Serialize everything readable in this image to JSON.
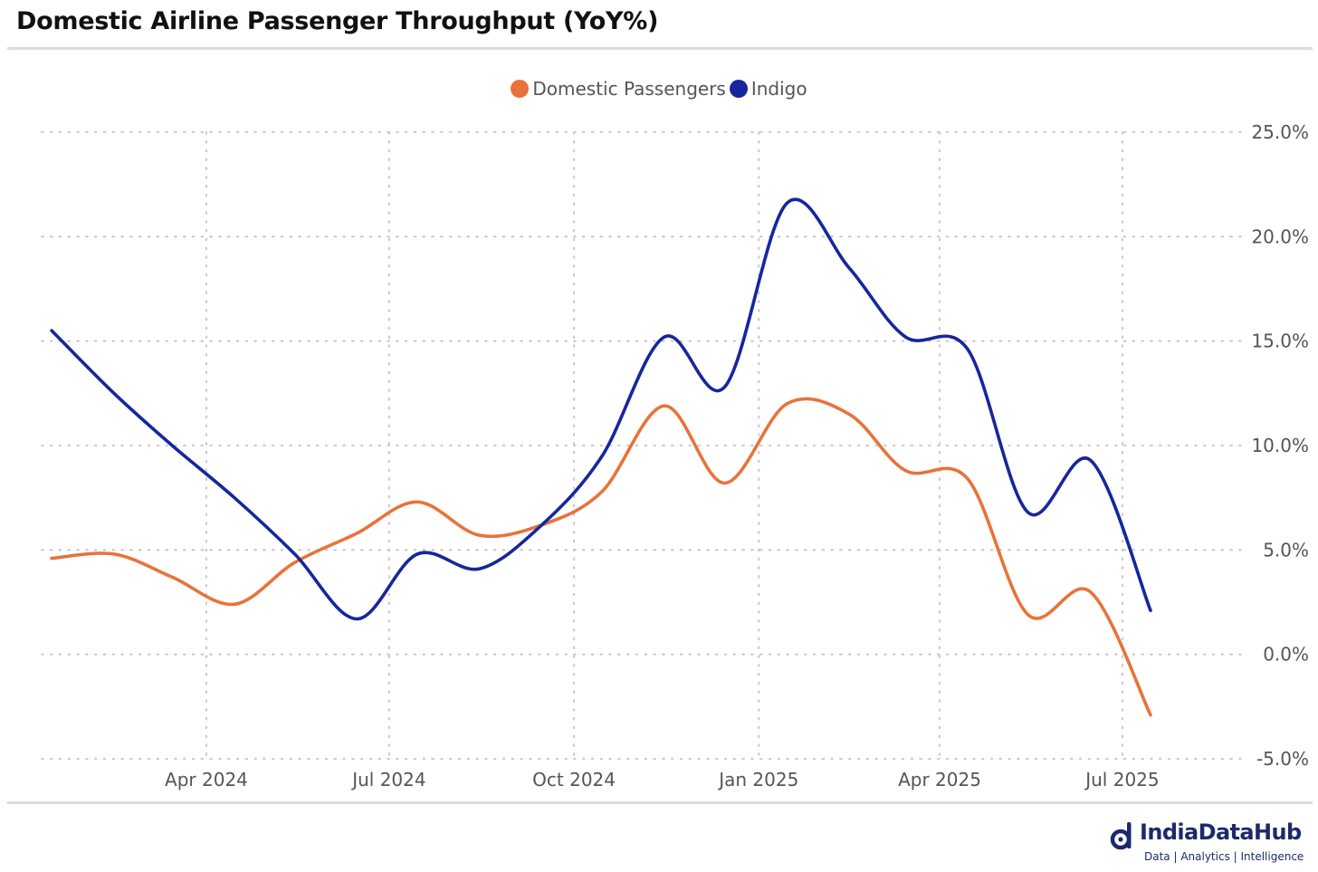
{
  "title": "Domestic Airline Passenger Throughput (YoY%)",
  "brand": {
    "name": "IndiaDataHub",
    "tagline": "Data | Analytics | Intelligence",
    "color": "#1b2a6b"
  },
  "chart_data": {
    "type": "line",
    "title": "Domestic Airline Passenger Throughput (YoY%)",
    "xlabel": "",
    "ylabel": "",
    "y_axis_position": "right",
    "ylim": [
      -5,
      25
    ],
    "y_ticks": [
      25,
      20,
      15,
      10,
      5,
      0,
      -5
    ],
    "y_tick_labels": [
      "25.0%",
      "20.0%",
      "15.0%",
      "10.0%",
      "5.0%",
      "0.0%",
      "-5.0%"
    ],
    "x_ticks": [
      "2024-04-01",
      "2024-07-01",
      "2024-10-01",
      "2025-01-01",
      "2025-04-01",
      "2025-07-01"
    ],
    "x_tick_labels": [
      "Apr 2024",
      "Jul 2024",
      "Oct 2024",
      "Jan 2025",
      "Apr 2025",
      "Jul 2025"
    ],
    "x_range": [
      "2024-01-10",
      "2025-08-25"
    ],
    "grid": true,
    "grid_style": "dotted",
    "legend_position": "top-center",
    "x": [
      "2024-01-15",
      "2024-02-15",
      "2024-03-15",
      "2024-04-15",
      "2024-05-15",
      "2024-06-15",
      "2024-07-15",
      "2024-08-15",
      "2024-09-15",
      "2024-10-15",
      "2024-11-15",
      "2024-12-15",
      "2025-01-15",
      "2025-02-15",
      "2025-03-15",
      "2025-04-15",
      "2025-05-15",
      "2025-06-15",
      "2025-07-15",
      "2025-08-15"
    ],
    "series": [
      {
        "name": "Domestic Passengers",
        "color": "#e8733a",
        "values": [
          4.6,
          4.8,
          3.7,
          2.4,
          4.4,
          5.8,
          7.3,
          5.7,
          6.2,
          7.8,
          11.9,
          8.2,
          12.0,
          11.5,
          8.8,
          8.4,
          1.9,
          3.0,
          -2.9,
          null
        ]
      },
      {
        "name": "Indigo",
        "color": "#17269c",
        "values": [
          15.5,
          12.5,
          10.0,
          7.5,
          4.8,
          1.7,
          4.8,
          4.1,
          6.2,
          9.5,
          15.2,
          12.8,
          21.6,
          18.5,
          15.2,
          14.6,
          6.8,
          9.3,
          2.1,
          null
        ]
      }
    ]
  }
}
